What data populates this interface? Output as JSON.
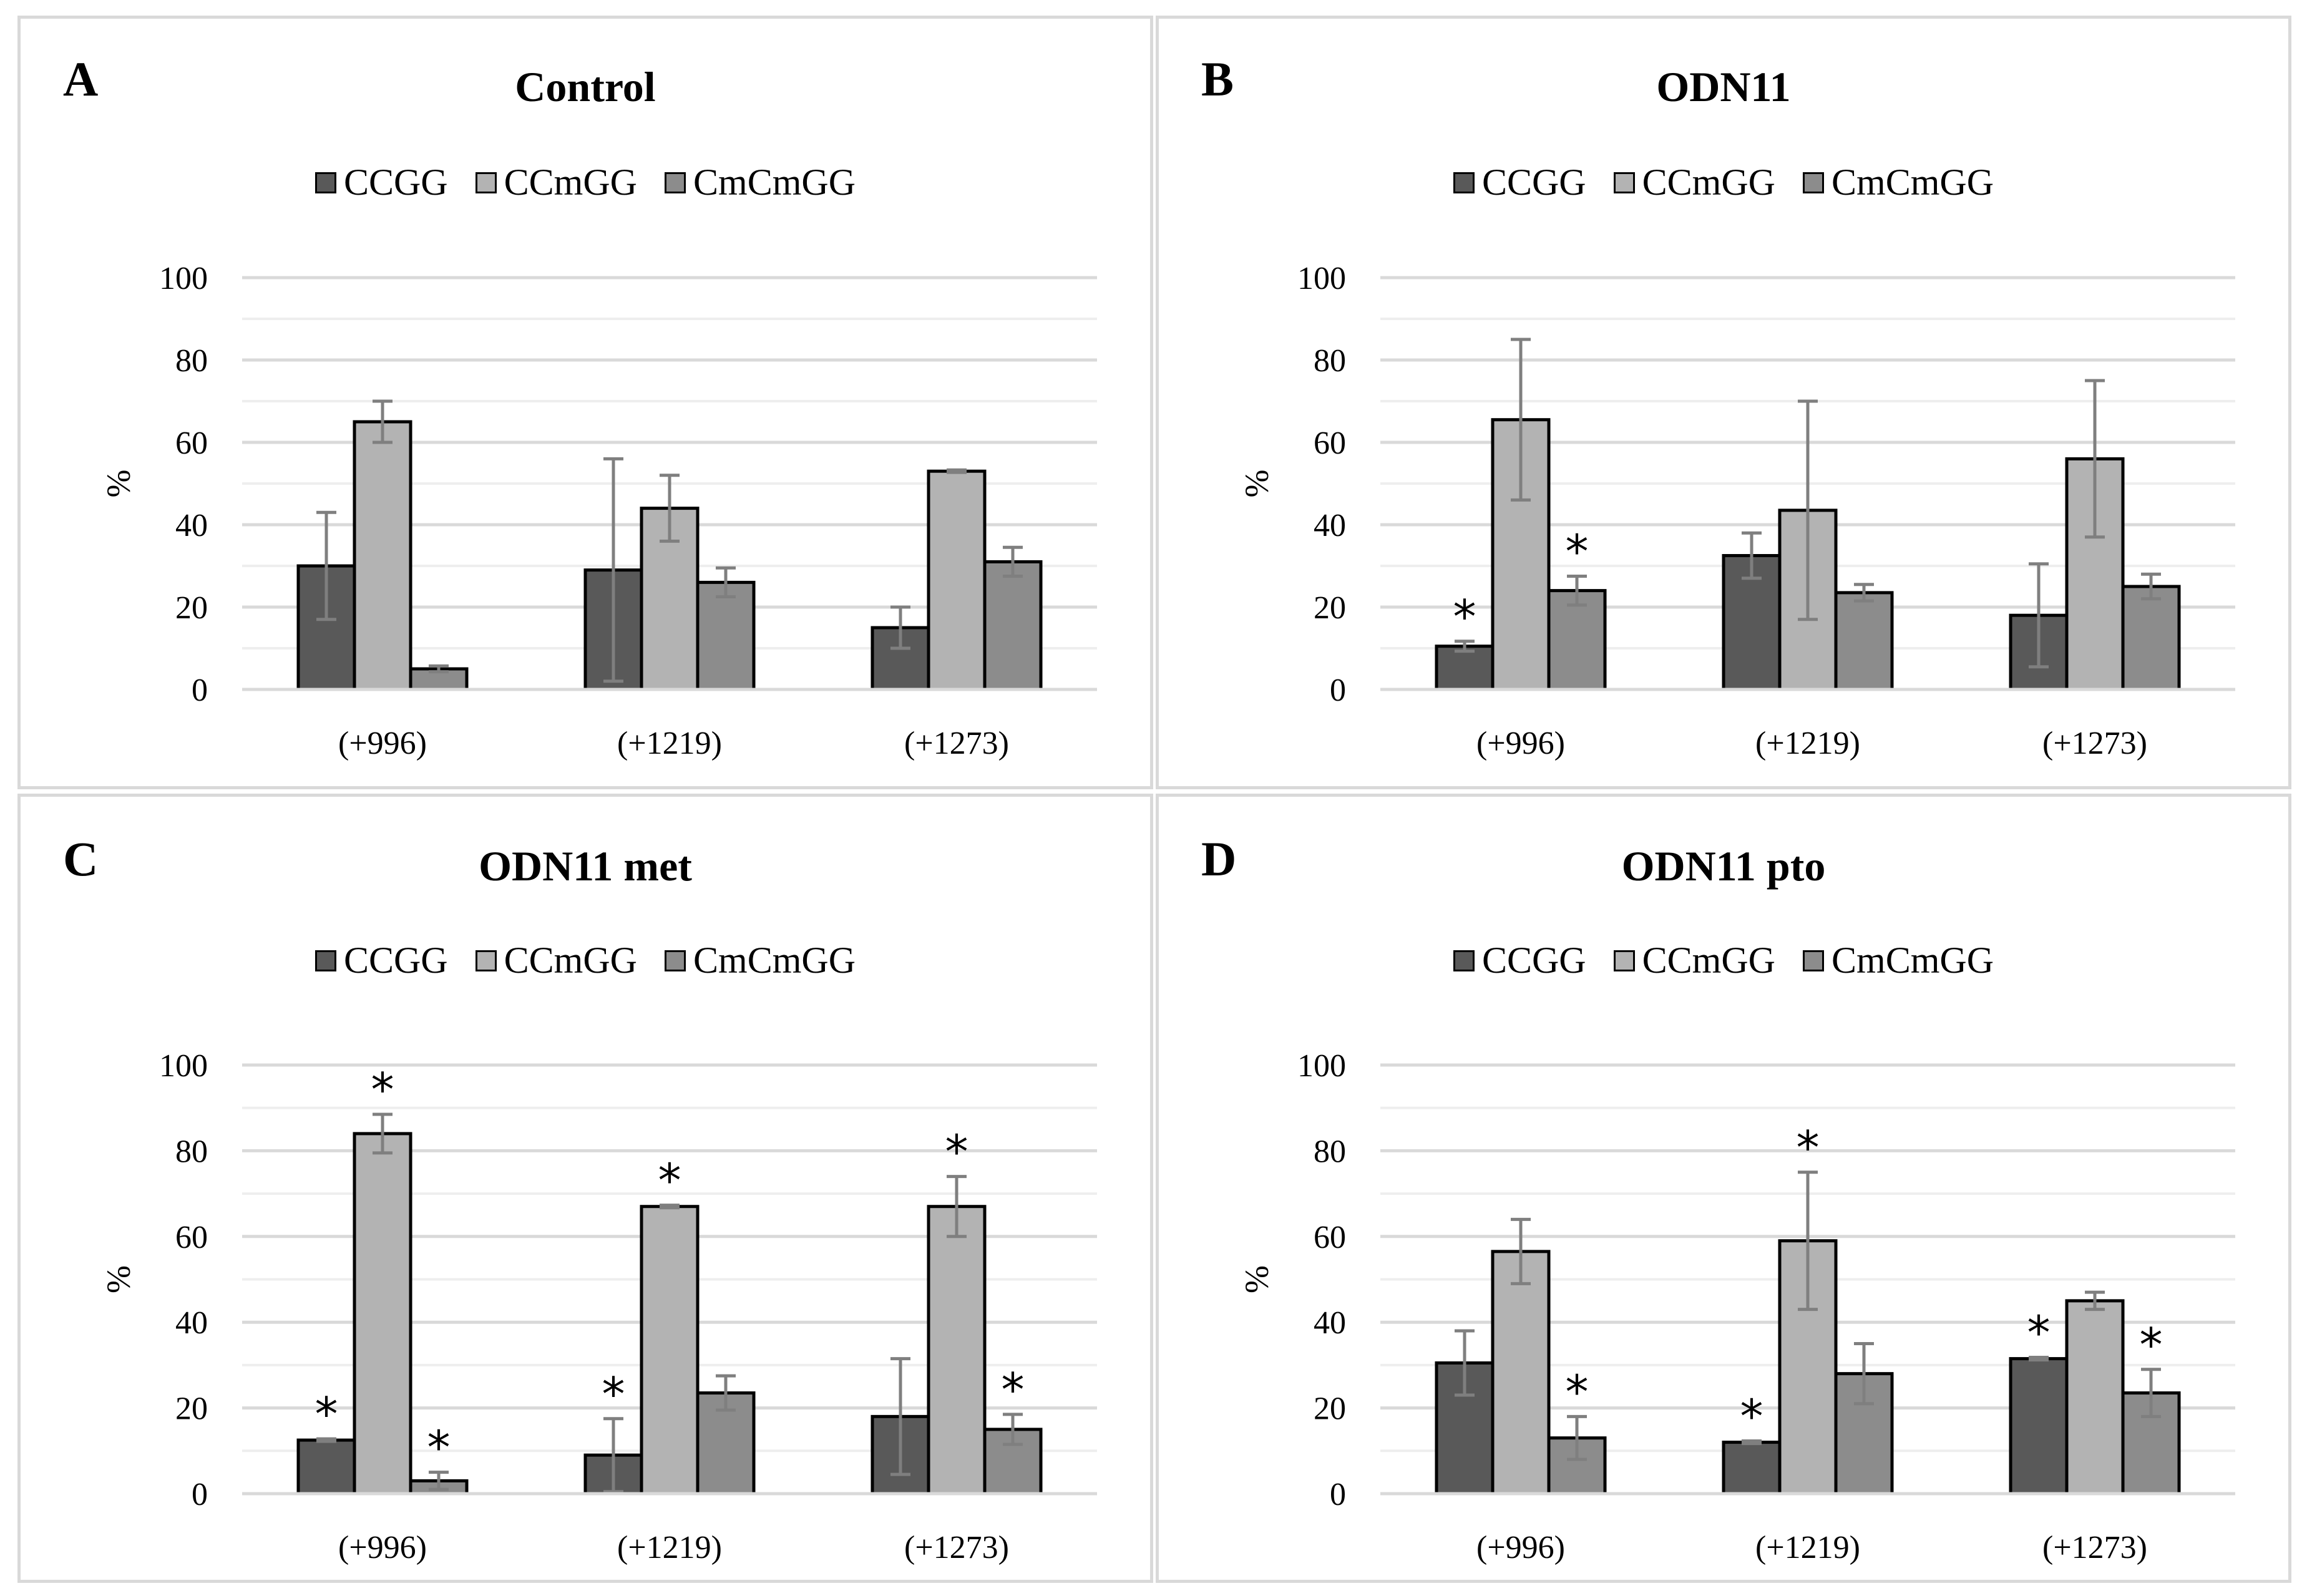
{
  "colors": {
    "CCGG": "#595959",
    "CCmGG": "#b3b3b3",
    "CmCmGG": "#8c8c8c",
    "error": "#7f7f7f",
    "grid": "#d9d9d9"
  },
  "chart_data": [
    {
      "type": "bar",
      "panel_label": "A",
      "title": "Control",
      "ylabel": "%",
      "ylim": [
        0,
        100
      ],
      "yticks": [
        "0",
        "20",
        "40",
        "60",
        "80",
        "100"
      ],
      "categories": [
        "(+996)",
        "(+1219)",
        "(+1273)"
      ],
      "series": [
        {
          "name": "CCGG",
          "values": [
            30,
            29,
            15
          ],
          "errors": [
            13,
            27,
            5
          ],
          "stars": [
            false,
            false,
            false
          ]
        },
        {
          "name": "CCmGG",
          "values": [
            65,
            44,
            53
          ],
          "errors": [
            5,
            8,
            0.3
          ],
          "stars": [
            false,
            false,
            false
          ]
        },
        {
          "name": "CmCmGG",
          "values": [
            5,
            26,
            31
          ],
          "errors": [
            0.7,
            3.5,
            3.5
          ],
          "stars": [
            false,
            false,
            false
          ]
        }
      ],
      "star_symbol": "*"
    },
    {
      "type": "bar",
      "panel_label": "B",
      "title": "ODN11",
      "ylabel": "%",
      "ylim": [
        0,
        100
      ],
      "yticks": [
        "0",
        "20",
        "40",
        "60",
        "80",
        "100"
      ],
      "categories": [
        "(+996)",
        "(+1219)",
        "(+1273)"
      ],
      "series": [
        {
          "name": "CCGG",
          "values": [
            10.5,
            32.5,
            18
          ],
          "errors": [
            1.2,
            5.5,
            12.5
          ],
          "stars": [
            true,
            false,
            false
          ]
        },
        {
          "name": "CCmGG",
          "values": [
            65.5,
            43.5,
            56
          ],
          "errors": [
            19.5,
            26.5,
            19
          ],
          "stars": [
            false,
            false,
            false
          ]
        },
        {
          "name": "CmCmGG",
          "values": [
            24,
            23.5,
            25
          ],
          "errors": [
            3.5,
            2,
            3
          ],
          "stars": [
            true,
            false,
            false
          ]
        }
      ],
      "star_symbol": "*"
    },
    {
      "type": "bar",
      "panel_label": "C",
      "title": "ODN11 met",
      "ylabel": "%",
      "ylim": [
        0,
        100
      ],
      "yticks": [
        "0",
        "20",
        "40",
        "60",
        "80",
        "100"
      ],
      "categories": [
        "(+996)",
        "(+1219)",
        "(+1273)"
      ],
      "series": [
        {
          "name": "CCGG",
          "values": [
            12.5,
            9,
            18
          ],
          "errors": [
            0.3,
            8.5,
            13.5
          ],
          "stars": [
            true,
            true,
            false
          ]
        },
        {
          "name": "CCmGG",
          "values": [
            84,
            67,
            67
          ],
          "errors": [
            4.5,
            0.3,
            7
          ],
          "stars": [
            true,
            true,
            true
          ]
        },
        {
          "name": "CmCmGG",
          "values": [
            3,
            23.5,
            15
          ],
          "errors": [
            2,
            4,
            3.5
          ],
          "stars": [
            true,
            false,
            true
          ]
        }
      ],
      "star_symbol": "*"
    },
    {
      "type": "bar",
      "panel_label": "D",
      "title": "ODN11 pto",
      "ylabel": "%",
      "ylim": [
        0,
        100
      ],
      "yticks": [
        "0",
        "20",
        "40",
        "60",
        "80",
        "100"
      ],
      "categories": [
        "(+996)",
        "(+1219)",
        "(+1273)"
      ],
      "series": [
        {
          "name": "CCGG",
          "values": [
            30.5,
            12,
            31.5
          ],
          "errors": [
            7.5,
            0.3,
            0.3
          ],
          "stars": [
            false,
            true,
            true
          ]
        },
        {
          "name": "CCmGG",
          "values": [
            56.5,
            59,
            45
          ],
          "errors": [
            7.5,
            16,
            2
          ],
          "stars": [
            false,
            true,
            false
          ]
        },
        {
          "name": "CmCmGG",
          "values": [
            13,
            28,
            23.5
          ],
          "errors": [
            5,
            7,
            5.5
          ],
          "stars": [
            true,
            false,
            true
          ]
        }
      ],
      "star_symbol": "*"
    }
  ]
}
